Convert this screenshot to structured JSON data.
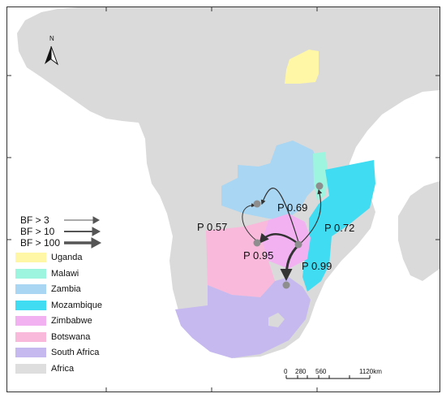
{
  "north_label": "N",
  "legend": {
    "items": [
      {
        "label": "Uganda",
        "color": "#fff7a6"
      },
      {
        "label": "Malawi",
        "color": "#9df5df"
      },
      {
        "label": "Zambia",
        "color": "#a9d6f2"
      },
      {
        "label": "Mozambique",
        "color": "#3fdcf2"
      },
      {
        "label": "Zimbabwe",
        "color": "#f2b2f2"
      },
      {
        "label": "Botswana",
        "color": "#f9b9da"
      },
      {
        "label": "South Africa",
        "color": "#c6b9ef"
      },
      {
        "label": "Africa",
        "color": "#dedede"
      }
    ]
  },
  "bf_legend": [
    "BF > 3",
    "BF > 10",
    "BF > 100"
  ],
  "probabilities": [
    "P 0.69",
    "P 0.57",
    "P 0.72",
    "P 0.95",
    "P 0.99"
  ],
  "scale": {
    "ticks": [
      "0",
      "280",
      "560",
      "1120km"
    ]
  }
}
